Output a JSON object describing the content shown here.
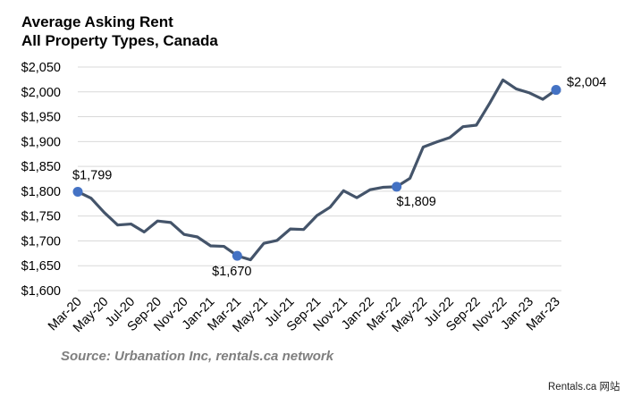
{
  "chart_data": {
    "type": "line",
    "title_line1": "Average Asking Rent",
    "title_line2": "All Property Types, Canada",
    "xlabel": "",
    "ylabel": "",
    "ylim": [
      1600,
      2050
    ],
    "y_ticks": [
      "$1,600",
      "$1,650",
      "$1,700",
      "$1,750",
      "$1,800",
      "$1,850",
      "$1,900",
      "$1,950",
      "$2,000",
      "$2,050"
    ],
    "x_ticks": [
      "Mar-20",
      "May-20",
      "Jul-20",
      "Sep-20",
      "Nov-20",
      "Jan-21",
      "Mar-21",
      "May-21",
      "Jul-21",
      "Sep-21",
      "Nov-21",
      "Jan-22",
      "Mar-22",
      "May-22",
      "Jul-22",
      "Sep-22",
      "Nov-22",
      "Jan-23",
      "Mar-23"
    ],
    "x": [
      "Mar-20",
      "Apr-20",
      "May-20",
      "Jun-20",
      "Jul-20",
      "Aug-20",
      "Sep-20",
      "Oct-20",
      "Nov-20",
      "Dec-20",
      "Jan-21",
      "Feb-21",
      "Mar-21",
      "Apr-21",
      "May-21",
      "Jun-21",
      "Jul-21",
      "Aug-21",
      "Sep-21",
      "Oct-21",
      "Nov-21",
      "Dec-21",
      "Jan-22",
      "Feb-22",
      "Mar-22",
      "Apr-22",
      "May-22",
      "Jun-22",
      "Jul-22",
      "Aug-22",
      "Sep-22",
      "Oct-22",
      "Nov-22",
      "Dec-22",
      "Jan-23",
      "Feb-23",
      "Mar-23"
    ],
    "values": [
      1799,
      1786,
      1757,
      1732,
      1734,
      1718,
      1740,
      1737,
      1713,
      1708,
      1690,
      1689,
      1670,
      1662,
      1695,
      1701,
      1724,
      1723,
      1751,
      1768,
      1801,
      1787,
      1803,
      1808,
      1809,
      1826,
      1889,
      1899,
      1908,
      1930,
      1933,
      1977,
      2024,
      2006,
      1998,
      1985,
      2004
    ],
    "line_color": "#44546a",
    "marker_color": "#4472c4",
    "highlights": [
      {
        "index": 0,
        "label": "$1,799"
      },
      {
        "index": 12,
        "label": "$1,670"
      },
      {
        "index": 24,
        "label": "$1,809"
      },
      {
        "index": 36,
        "label": "$2,004"
      }
    ],
    "grid": true,
    "legend": "none"
  },
  "source": "Source: Urbanation Inc, rentals.ca network",
  "watermark": "Rentals.ca 网站"
}
